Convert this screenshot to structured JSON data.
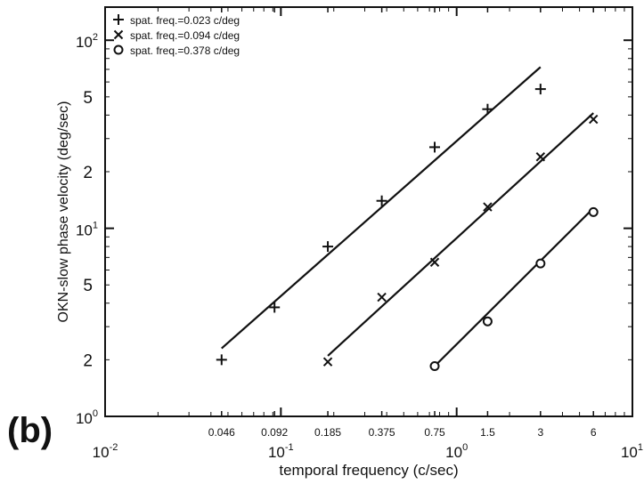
{
  "panel_label": "(b)",
  "chart_data": {
    "type": "scatter",
    "title": "",
    "xlabel": "temporal frequency (c/sec)",
    "ylabel": "OKN-slow phase velocity (deg/sec)",
    "xscale": "log",
    "yscale": "log",
    "xlim": [
      0.01,
      10
    ],
    "ylim": [
      1,
      150
    ],
    "grid": false,
    "legend_position": "top-left",
    "x_decade_ticks": [
      {
        "value": 0.01,
        "base": "10",
        "exp": "-2"
      },
      {
        "value": 0.1,
        "base": "10",
        "exp": "-1"
      },
      {
        "value": 1,
        "base": "10",
        "exp": "0"
      },
      {
        "value": 10,
        "base": "10",
        "exp": "1"
      }
    ],
    "x_value_ticks": [
      {
        "value": 0.046,
        "label": "0.046"
      },
      {
        "value": 0.092,
        "label": "0.092"
      },
      {
        "value": 0.185,
        "label": "0.185"
      },
      {
        "value": 0.375,
        "label": "0.375"
      },
      {
        "value": 0.75,
        "label": "0.75"
      },
      {
        "value": 1.5,
        "label": "1.5"
      },
      {
        "value": 3,
        "label": "3"
      },
      {
        "value": 6,
        "label": "6"
      }
    ],
    "y_decade_ticks": [
      {
        "value": 1,
        "base": "10",
        "exp": "0"
      },
      {
        "value": 10,
        "base": "10",
        "exp": "1"
      },
      {
        "value": 100,
        "base": "10",
        "exp": "2"
      }
    ],
    "y_minor_ticks": [
      {
        "value": 2,
        "label": "2"
      },
      {
        "value": 5,
        "label": "5"
      },
      {
        "value": 20,
        "label": "2"
      },
      {
        "value": 50,
        "label": "5"
      }
    ],
    "series": [
      {
        "name": "spat. freq.=0.023 c/deg",
        "marker": "plus",
        "points": [
          {
            "x": 0.046,
            "y": 2.0
          },
          {
            "x": 0.092,
            "y": 3.8
          },
          {
            "x": 0.185,
            "y": 8.0
          },
          {
            "x": 0.375,
            "y": 14.0
          },
          {
            "x": 0.75,
            "y": 27.0
          },
          {
            "x": 1.5,
            "y": 43.0
          },
          {
            "x": 3.0,
            "y": 55.0
          }
        ],
        "fit": [
          {
            "x": 0.046,
            "y": 2.3
          },
          {
            "x": 3.0,
            "y": 72.0
          }
        ]
      },
      {
        "name": "spat. freq.=0.094 c/deg",
        "marker": "cross",
        "points": [
          {
            "x": 0.185,
            "y": 1.95
          },
          {
            "x": 0.375,
            "y": 4.3
          },
          {
            "x": 0.75,
            "y": 6.6
          },
          {
            "x": 1.5,
            "y": 13.0
          },
          {
            "x": 3.0,
            "y": 24.0
          },
          {
            "x": 6.0,
            "y": 38.0
          }
        ],
        "fit": [
          {
            "x": 0.185,
            "y": 2.1
          },
          {
            "x": 6.0,
            "y": 41.0
          }
        ]
      },
      {
        "name": "spat. freq.=0.378 c/deg",
        "marker": "circle",
        "points": [
          {
            "x": 0.75,
            "y": 1.85
          },
          {
            "x": 1.5,
            "y": 3.2
          },
          {
            "x": 3.0,
            "y": 6.5
          },
          {
            "x": 6.0,
            "y": 12.2
          }
        ],
        "fit": [
          {
            "x": 0.75,
            "y": 1.85
          },
          {
            "x": 6.0,
            "y": 12.8
          }
        ]
      }
    ]
  }
}
